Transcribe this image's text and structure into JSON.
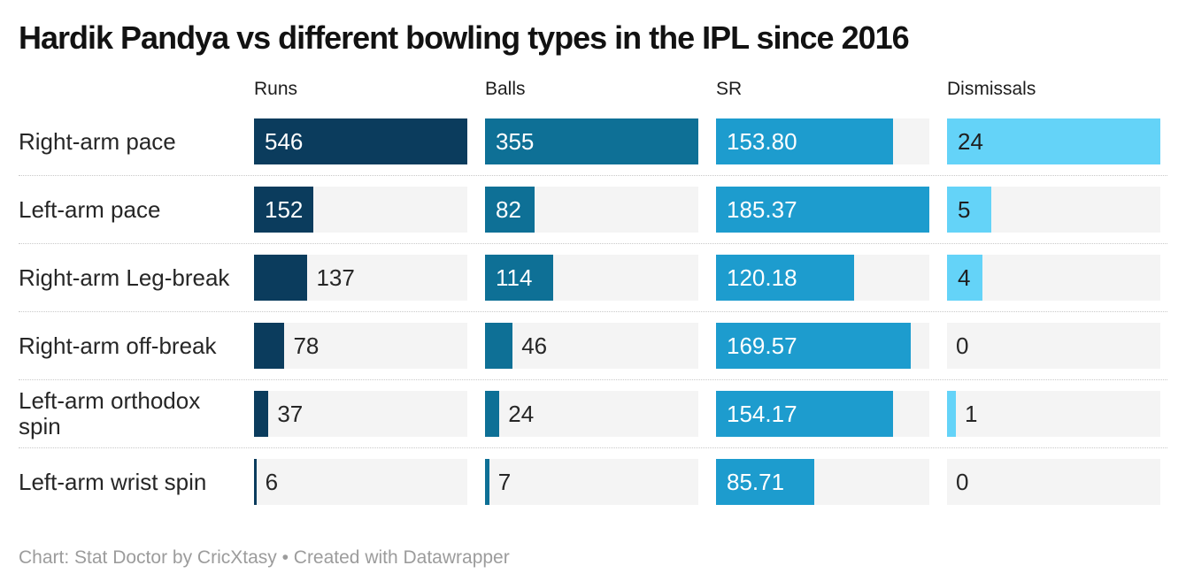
{
  "title": "Hardik Pandya vs different bowling types in the IPL since 2016",
  "footer": "Chart: Stat Doctor by CricXtasy • Created with Datawrapper",
  "colors": {
    "runs": "#0b3c5d",
    "balls": "#0e7096",
    "sr": "#1d9cce",
    "dismissals": "#64d3f8",
    "track": "#f4f4f4",
    "value_light": "#ffffff",
    "value_dark": "#1f1f1f",
    "row_label": "#262626",
    "separator": "#c9c9c9",
    "footer_text": "#9c9c9c"
  },
  "chart_data": {
    "type": "bar",
    "title": "Hardik Pandya vs different bowling types in the IPL since 2016",
    "orientation": "horizontal",
    "grid": false,
    "legend_position": "none",
    "columns": [
      "Runs",
      "Balls",
      "SR",
      "Dismissals"
    ],
    "categories": [
      "Right-arm pace",
      "Left-arm pace",
      "Right-arm Leg-break",
      "Right-arm off-break",
      "Left-arm orthodox spin",
      "Left-arm wrist spin"
    ],
    "series": [
      {
        "name": "Runs",
        "color": "#0b3c5d",
        "axis_max": 546,
        "values": [
          546,
          152,
          137,
          78,
          37,
          6
        ]
      },
      {
        "name": "Balls",
        "color": "#0e7096",
        "axis_max": 355,
        "values": [
          355,
          82,
          114,
          46,
          24,
          7
        ]
      },
      {
        "name": "SR",
        "color": "#1d9cce",
        "axis_max": 185.37,
        "values": [
          153.8,
          185.37,
          120.18,
          169.57,
          154.17,
          85.71
        ]
      },
      {
        "name": "Dismissals",
        "color": "#64d3f8",
        "axis_max": 24,
        "values": [
          24,
          5,
          4,
          0,
          1,
          0
        ]
      }
    ]
  },
  "rows": [
    {
      "label": "Right-arm pace",
      "cells": [
        {
          "display": "546",
          "pct": 100,
          "inside": true
        },
        {
          "display": "355",
          "pct": 100,
          "inside": true
        },
        {
          "display": "153.80",
          "pct": 82.97,
          "inside": true
        },
        {
          "display": "24",
          "pct": 100,
          "inside": true
        }
      ]
    },
    {
      "label": "Left-arm pace",
      "cells": [
        {
          "display": "152",
          "pct": 27.84,
          "inside": true
        },
        {
          "display": "82",
          "pct": 23.1,
          "inside": true
        },
        {
          "display": "185.37",
          "pct": 100,
          "inside": true
        },
        {
          "display": "5",
          "pct": 20.83,
          "inside": true
        }
      ]
    },
    {
      "label": "Right-arm Leg-break",
      "cells": [
        {
          "display": "137",
          "pct": 25.09,
          "inside": false
        },
        {
          "display": "114",
          "pct": 32.11,
          "inside": true
        },
        {
          "display": "120.18",
          "pct": 64.83,
          "inside": true
        },
        {
          "display": "4",
          "pct": 16.67,
          "inside": true
        }
      ]
    },
    {
      "label": "Right-arm off-break",
      "cells": [
        {
          "display": "78",
          "pct": 14.29,
          "inside": false
        },
        {
          "display": "46",
          "pct": 12.96,
          "inside": false
        },
        {
          "display": "169.57",
          "pct": 91.48,
          "inside": true
        },
        {
          "display": "0",
          "pct": 0,
          "inside": false
        }
      ]
    },
    {
      "label": "Left-arm orthodox spin",
      "cells": [
        {
          "display": "37",
          "pct": 6.78,
          "inside": false
        },
        {
          "display": "24",
          "pct": 6.76,
          "inside": false
        },
        {
          "display": "154.17",
          "pct": 83.17,
          "inside": true
        },
        {
          "display": "1",
          "pct": 4.17,
          "inside": false
        }
      ]
    },
    {
      "label": "Left-arm wrist spin",
      "cells": [
        {
          "display": "6",
          "pct": 1.1,
          "inside": false
        },
        {
          "display": "7",
          "pct": 1.97,
          "inside": false
        },
        {
          "display": "85.71",
          "pct": 46.24,
          "inside": true
        },
        {
          "display": "0",
          "pct": 0,
          "inside": false
        }
      ]
    }
  ]
}
